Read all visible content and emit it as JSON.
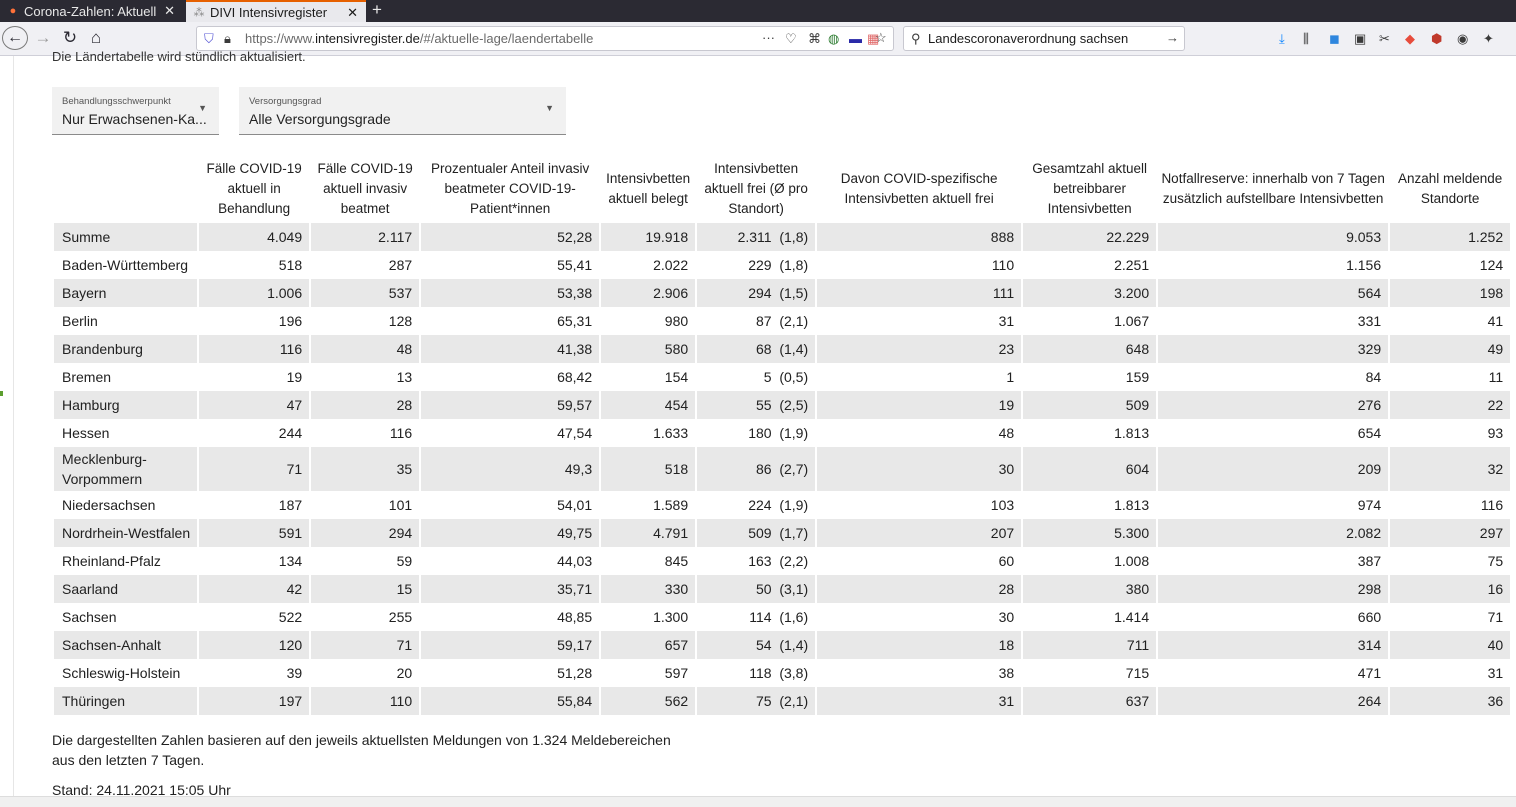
{
  "browser": {
    "tabs": [
      {
        "label": "Corona-Zahlen: Aktuelle"
      },
      {
        "label": "DIVI Intensivregister"
      }
    ],
    "url_prefix": "https://www.",
    "url_domain": "intensivregister.de",
    "url_path": "/#/aktuelle-lage/laendertabelle",
    "search_value": "Landescoronaverordnung sachsen"
  },
  "page": {
    "top_note": "Die Ländertabelle wird stündlich aktualisiert.",
    "filters": [
      {
        "label": "Behandlungsschwerpunkt",
        "value": "Nur Erwachsenen-Ka..."
      },
      {
        "label": "Versorgungsgrad",
        "value": "Alle Versorgungsgrade"
      }
    ],
    "footnote": "Die dargestellten Zahlen basieren auf den jeweils aktuellsten Meldungen von 1.324 Meldebereichen aus den letzten 7 Tagen.",
    "stand": "Stand: 24.11.2021 15:05 Uhr"
  },
  "table": {
    "headers": [
      "",
      "Fälle COVID-19 aktuell in Behandlung",
      "Fälle COVID-19 aktuell invasiv beatmet",
      "Prozentualer Anteil invasiv beatmeter COVID-19-Patient*innen",
      "Intensivbetten aktuell belegt",
      "Intensivbetten aktuell frei (Ø pro Standort)",
      "Davon COVID-spezifische Intensivbetten aktuell frei",
      "Gesamtzahl aktuell betreibbarer Intensivbetten",
      "Notfallreserve: innerhalb von 7 Tagen zusätzlich aufstellbare Intensivbetten",
      "Anzahl meldende Standorte"
    ],
    "rows": [
      [
        "Summe",
        "4.049",
        "2.117",
        "52,28",
        "19.918",
        "2.311  (1,8)",
        "888",
        "22.229",
        "9.053",
        "1.252"
      ],
      [
        "Baden-Württemberg",
        "518",
        "287",
        "55,41",
        "2.022",
        "229  (1,8)",
        "110",
        "2.251",
        "1.156",
        "124"
      ],
      [
        "Bayern",
        "1.006",
        "537",
        "53,38",
        "2.906",
        "294  (1,5)",
        "111",
        "3.200",
        "564",
        "198"
      ],
      [
        "Berlin",
        "196",
        "128",
        "65,31",
        "980",
        "87  (2,1)",
        "31",
        "1.067",
        "331",
        "41"
      ],
      [
        "Brandenburg",
        "116",
        "48",
        "41,38",
        "580",
        "68  (1,4)",
        "23",
        "648",
        "329",
        "49"
      ],
      [
        "Bremen",
        "19",
        "13",
        "68,42",
        "154",
        "5  (0,5)",
        "1",
        "159",
        "84",
        "11"
      ],
      [
        "Hamburg",
        "47",
        "28",
        "59,57",
        "454",
        "55  (2,5)",
        "19",
        "509",
        "276",
        "22"
      ],
      [
        "Hessen",
        "244",
        "116",
        "47,54",
        "1.633",
        "180  (1,9)",
        "48",
        "1.813",
        "654",
        "93"
      ],
      [
        "Mecklenburg-Vorpommern",
        "71",
        "35",
        "49,3",
        "518",
        "86  (2,7)",
        "30",
        "604",
        "209",
        "32"
      ],
      [
        "Niedersachsen",
        "187",
        "101",
        "54,01",
        "1.589",
        "224  (1,9)",
        "103",
        "1.813",
        "974",
        "116"
      ],
      [
        "Nordrhein-Westfalen",
        "591",
        "294",
        "49,75",
        "4.791",
        "509  (1,7)",
        "207",
        "5.300",
        "2.082",
        "297"
      ],
      [
        "Rheinland-Pfalz",
        "134",
        "59",
        "44,03",
        "845",
        "163  (2,2)",
        "60",
        "1.008",
        "387",
        "75"
      ],
      [
        "Saarland",
        "42",
        "15",
        "35,71",
        "330",
        "50  (3,1)",
        "28",
        "380",
        "298",
        "16"
      ],
      [
        "Sachsen",
        "522",
        "255",
        "48,85",
        "1.300",
        "114  (1,6)",
        "30",
        "1.414",
        "660",
        "71"
      ],
      [
        "Sachsen-Anhalt",
        "120",
        "71",
        "59,17",
        "657",
        "54  (1,4)",
        "18",
        "711",
        "314",
        "40"
      ],
      [
        "Schleswig-Holstein",
        "39",
        "20",
        "51,28",
        "597",
        "118  (3,8)",
        "38",
        "715",
        "471",
        "31"
      ],
      [
        "Thüringen",
        "197",
        "110",
        "55,84",
        "562",
        "75  (2,1)",
        "31",
        "637",
        "264",
        "36"
      ]
    ]
  }
}
